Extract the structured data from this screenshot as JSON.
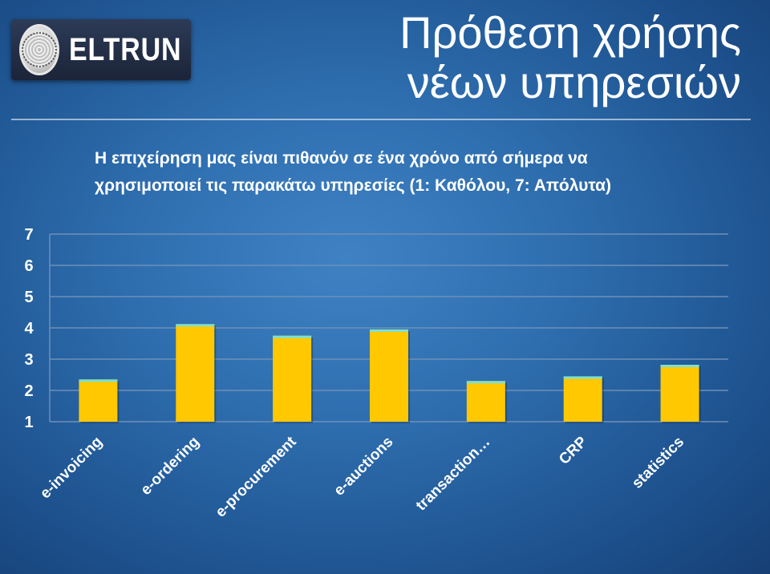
{
  "logo": {
    "text": "ELTRUN"
  },
  "title": {
    "line1": "Πρόθεση χρήσης",
    "line2": "νέων υπηρεσιών"
  },
  "chart_data": {
    "type": "bar",
    "title": "",
    "subtitle_line1": "Η επιχείρηση μας είναι πιθανόν σε ένα χρόνο από σήμερα να",
    "subtitle_line2": "χρησιμοποιεί τις παρακάτω υπηρεσίες (1: Καθόλου, 7: Απόλυτα)",
    "categories": [
      "e-invoicing",
      "e-ordering",
      "e-procurement",
      "e-auctions",
      "transaction…",
      "CRP",
      "statistics"
    ],
    "values": [
      2.35,
      4.12,
      3.75,
      3.95,
      2.3,
      2.45,
      2.82
    ],
    "ylim": [
      1,
      7
    ],
    "yticks": [
      1,
      2,
      3,
      4,
      5,
      6,
      7
    ],
    "grid": true,
    "legend": "none",
    "colors": {
      "bar": "#ffc800",
      "bar_top": "#7fe0d0",
      "grid": "#6f8fb8",
      "axis_text": "#ffffff"
    }
  }
}
